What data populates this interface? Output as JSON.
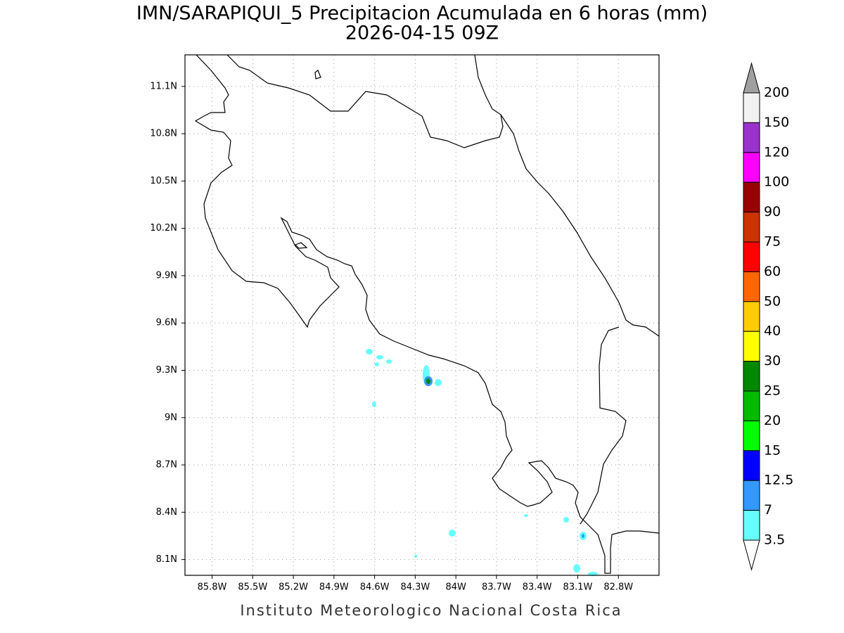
{
  "map": {
    "title": "IMN/SARAPIQUI_5 Precipitacion Acumulada en 6 horas (mm)",
    "subtitle": "2026-04-15 09Z",
    "footer": "Instituto Meteorologico Nacional Costa Rica",
    "xlim": [
      -86.0,
      -82.5
    ],
    "ylim": [
      8.0,
      11.3
    ],
    "xticks": [
      {
        "value": -85.8,
        "label": "85.8W"
      },
      {
        "value": -85.5,
        "label": "85.5W"
      },
      {
        "value": -85.2,
        "label": "85.2W"
      },
      {
        "value": -84.9,
        "label": "84.9W"
      },
      {
        "value": -84.6,
        "label": "84.6W"
      },
      {
        "value": -84.3,
        "label": "84.3W"
      },
      {
        "value": -84.0,
        "label": "84W"
      },
      {
        "value": -83.7,
        "label": "83.7W"
      },
      {
        "value": -83.4,
        "label": "83.4W"
      },
      {
        "value": -83.1,
        "label": "83.1W"
      },
      {
        "value": -82.8,
        "label": "82.8W"
      }
    ],
    "yticks": [
      {
        "value": 11.1,
        "label": "11.1N"
      },
      {
        "value": 10.8,
        "label": "10.8N"
      },
      {
        "value": 10.5,
        "label": "10.5N"
      },
      {
        "value": 10.2,
        "label": "10.2N"
      },
      {
        "value": 9.9,
        "label": "9.9N"
      },
      {
        "value": 9.6,
        "label": "9.6N"
      },
      {
        "value": 9.3,
        "label": "9.3N"
      },
      {
        "value": 9.0,
        "label": "9N"
      },
      {
        "value": 8.7,
        "label": "8.7N"
      },
      {
        "value": 8.4,
        "label": "8.4N"
      },
      {
        "value": 8.1,
        "label": "8.1N"
      }
    ],
    "grid": true,
    "colorbar": {
      "levels": [
        200,
        150,
        120,
        100,
        90,
        75,
        60,
        50,
        40,
        30,
        25,
        20,
        15,
        12.5,
        7,
        3.5
      ],
      "colors": [
        "#f2f2f2",
        "#9933cc",
        "#ff00ff",
        "#990000",
        "#cc3300",
        "#ff0000",
        "#ff6600",
        "#ffcc00",
        "#ffff00",
        "#008800",
        "#00bb00",
        "#00ff00",
        "#0000ff",
        "#3399ff",
        "#66ffff"
      ],
      "over_color": "#a0a0a0",
      "under_color": "#ffffff"
    }
  }
}
